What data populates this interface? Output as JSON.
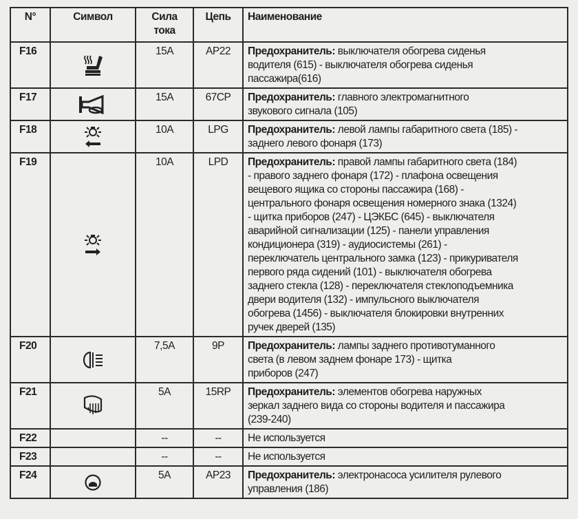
{
  "headers": {
    "num": "N°",
    "symbol": "Символ",
    "current": "Сила тока",
    "circuit": "Цепь",
    "name": "Наименование"
  },
  "rows": [
    {
      "num": "F16",
      "icon": "heated-seat-icon",
      "current": "15A",
      "circuit": "AP22",
      "bold": "Предохранитель:",
      "lines": [
        " выключателя обогрева сиденья",
        "водителя (615) - выключателя обогрева сиденья",
        "пассажира(616)"
      ]
    },
    {
      "num": "F17",
      "icon": "horn-icon",
      "current": "15A",
      "circuit": "67CP",
      "bold": "Предохранитель:",
      "lines": [
        " главного электромагнитного",
        "звукового сигнала (105)"
      ]
    },
    {
      "num": "F18",
      "icon": "left-side-light-icon",
      "current": "10A",
      "circuit": "LPG",
      "bold": "Предохранитель:",
      "lines": [
        " левой лампы габаритного света (185) -",
        "заднего левого фонаря (173)"
      ]
    },
    {
      "num": "F19",
      "icon": "right-side-light-icon",
      "current": "10A",
      "circuit": "LPD",
      "bold": "Предохранитель:",
      "lines": [
        " правой лампы габаритного света (184)",
        "- правого заднего фонаря (172) - плафона освещения",
        "вещевого ящика со стороны пассажира (168) -",
        "центрального фонаря освещения номерного знака (1324)",
        "- щитка приборов (247) - ЦЭКБС (645) - выключателя",
        "аварийной сигнализации (125) - панели управления",
        "кондиционера (319) - аудиосистемы (261) -",
        "переключатель центрального замка (123) - прикуривателя",
        "первого ряда сидений (101) - выключателя обогрева",
        "заднего стекла (128) - переключателя стеклоподъемника",
        "двери водителя (132) - импульсного выключателя",
        "обогрева (1456) - выключателя блокировки внутренних",
        "ручек дверей (135)"
      ]
    },
    {
      "num": "F20",
      "icon": "rear-fog-light-icon",
      "current": "7,5A",
      "circuit": "9P",
      "bold": "Предохранитель:",
      "lines": [
        " лампы заднего противотуманного",
        "света (в левом заднем фонаре 173) - щитка",
        "приборов (247)"
      ]
    },
    {
      "num": "F21",
      "icon": "heated-mirror-icon",
      "current": "5A",
      "circuit": "15RP",
      "bold": "Предохранитель:",
      "lines": [
        " элементов обогрева наружных",
        "зеркал заднего вида со стороны водителя и пассажира",
        "(239-240)"
      ]
    },
    {
      "num": "F22",
      "icon": "",
      "current": "--",
      "circuit": "--",
      "bold": "",
      "lines": [
        "Не используется"
      ]
    },
    {
      "num": "F23",
      "icon": "",
      "current": "--",
      "circuit": "--",
      "bold": "",
      "lines": [
        "Не используется"
      ]
    },
    {
      "num": "F24",
      "icon": "steering-wheel-icon",
      "current": "5A",
      "circuit": "AP23",
      "bold": "Предохранитель:",
      "lines": [
        " электронасоса усилителя рулевого",
        "управления (186)"
      ]
    }
  ]
}
